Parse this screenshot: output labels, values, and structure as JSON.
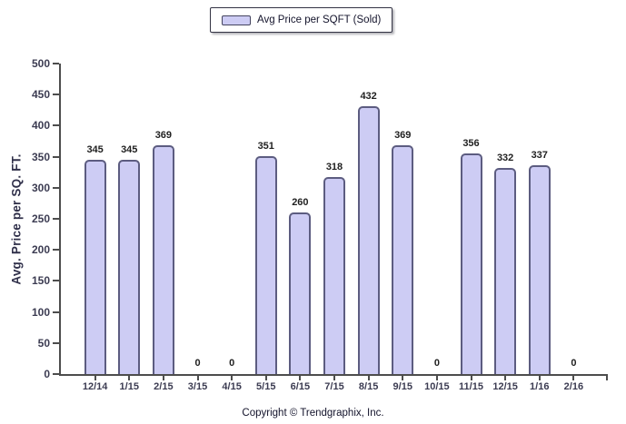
{
  "legend": {
    "swatch_color": "#cdccf4",
    "swatch_border": "#44445f"
  },
  "footer": {
    "copyright": "Copyright © Trendgraphix, Inc."
  },
  "colors": {
    "bar_fill": "#cdccf4",
    "bar_border": "#5c5c80",
    "axis": "#4d4d4d",
    "tick_text": "#3c3c52",
    "value_text": "#1f1f1f"
  },
  "chart_data": {
    "type": "bar",
    "title": "",
    "legend_label": "Avg Price per SQFT (Sold)",
    "categories": [
      "12/14",
      "1/15",
      "2/15",
      "3/15",
      "4/15",
      "5/15",
      "6/15",
      "7/15",
      "8/15",
      "9/15",
      "10/15",
      "11/15",
      "12/15",
      "1/16",
      "2/16"
    ],
    "values": [
      345,
      345,
      369,
      0,
      0,
      351,
      260,
      318,
      432,
      369,
      0,
      356,
      332,
      337,
      0
    ],
    "xlabel": "",
    "ylabel": "Avg. Price per SQ. FT.",
    "ylim": [
      0,
      500
    ],
    "ytick_step": 50,
    "grid": false,
    "legend_position": "top-center",
    "bar_values_shown": true
  }
}
